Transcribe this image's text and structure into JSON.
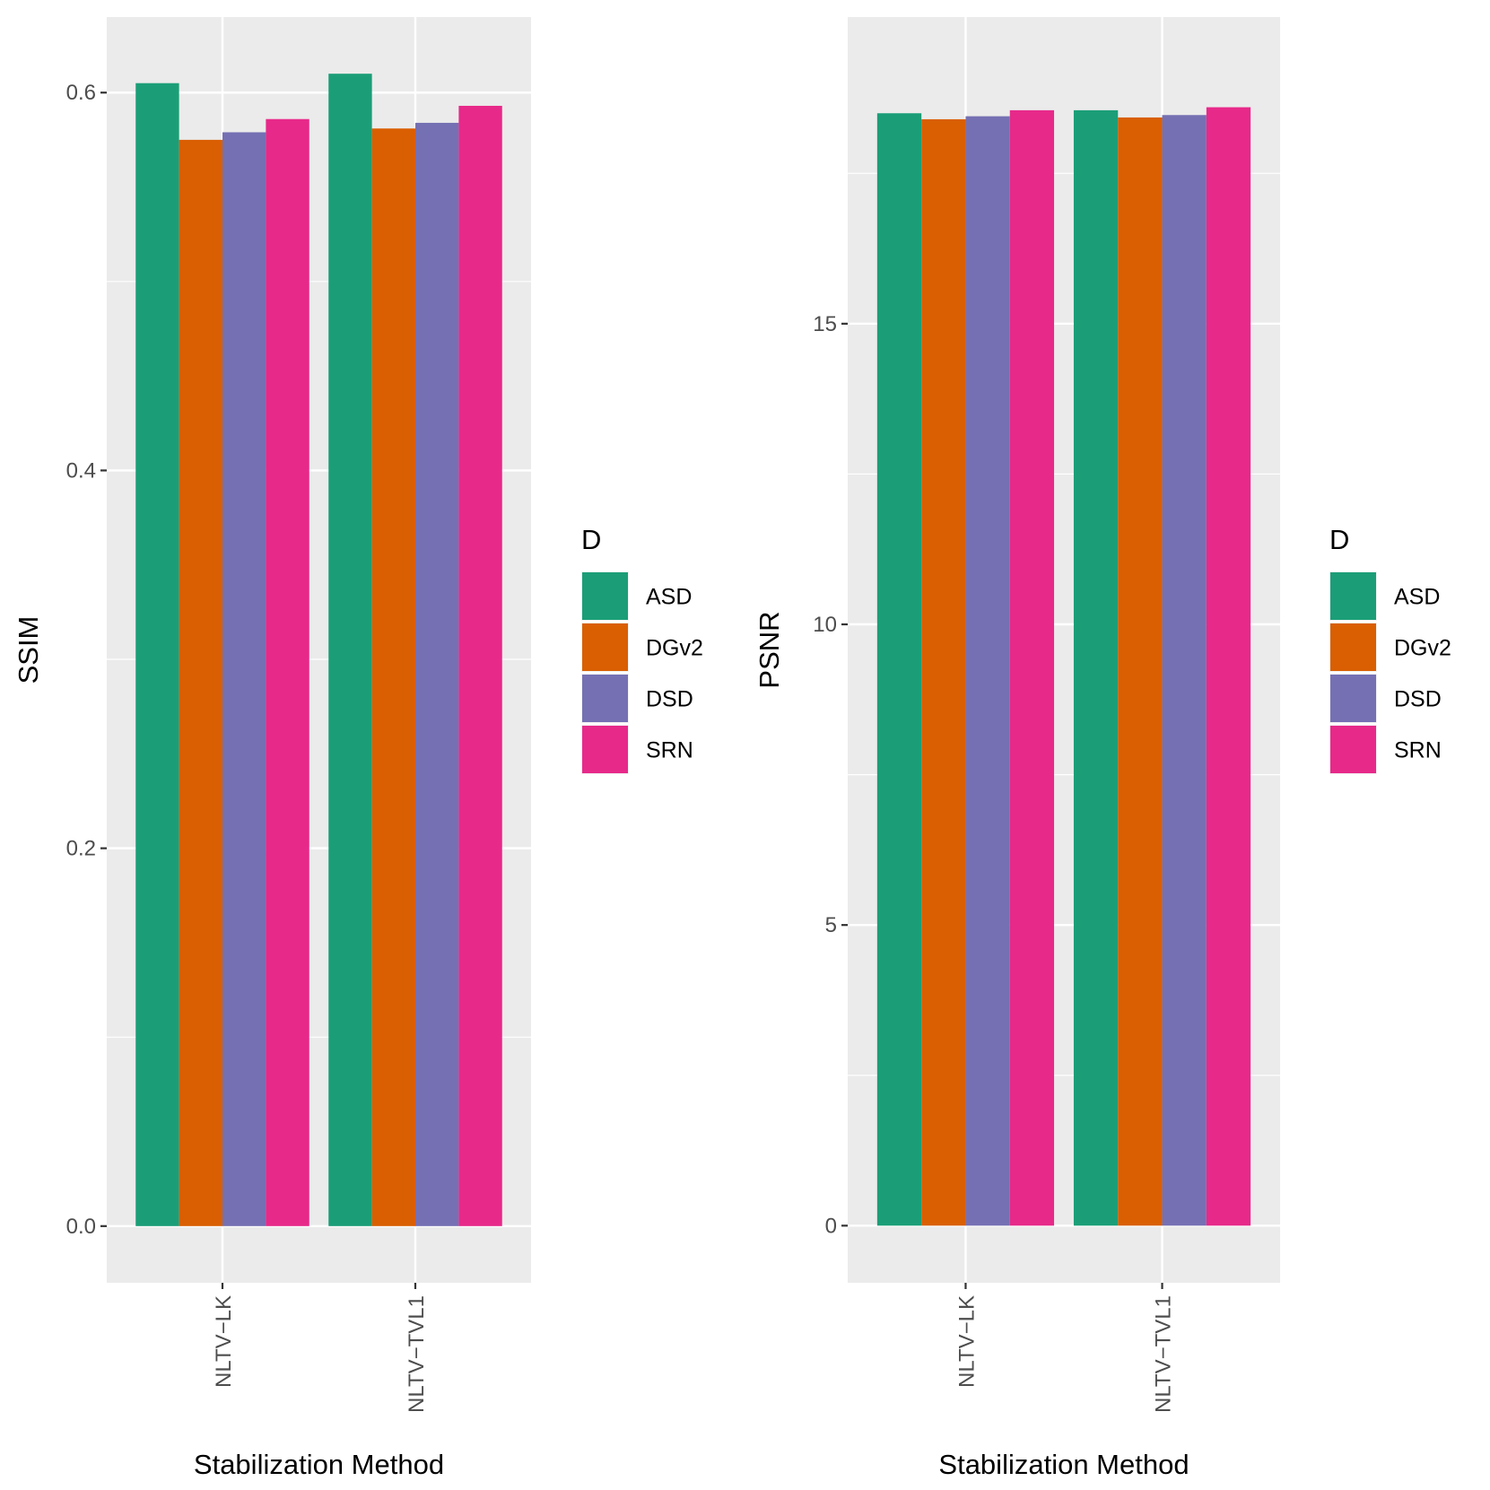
{
  "chart_data": [
    {
      "type": "bar",
      "xlabel": "Stabilization Method",
      "ylabel": "SSIM",
      "categories": [
        "NLTV−LK",
        "NLTV−TVL1"
      ],
      "series": [
        {
          "name": "ASD",
          "color": "#1B9E77",
          "values": [
            0.605,
            0.61
          ]
        },
        {
          "name": "DGv2",
          "color": "#D95F02",
          "values": [
            0.575,
            0.581
          ]
        },
        {
          "name": "DSD",
          "color": "#7570B3",
          "values": [
            0.579,
            0.584
          ]
        },
        {
          "name": "SRN",
          "color": "#E7298A",
          "values": [
            0.586,
            0.593
          ]
        }
      ],
      "ylim": [
        -0.03,
        0.64
      ],
      "yticks": [
        0.0,
        0.2,
        0.4,
        0.6
      ],
      "ytick_labels": [
        "0.0",
        "0.2",
        "0.4",
        "0.6"
      ],
      "legend": {
        "title": "D",
        "position": "right"
      },
      "grid": true
    },
    {
      "type": "bar",
      "xlabel": "Stabilization Method",
      "ylabel": "PSNR",
      "categories": [
        "NLTV−LK",
        "NLTV−TVL1"
      ],
      "series": [
        {
          "name": "ASD",
          "color": "#1B9E77",
          "values": [
            18.5,
            18.55
          ]
        },
        {
          "name": "DGv2",
          "color": "#D95F02",
          "values": [
            18.4,
            18.43
          ]
        },
        {
          "name": "DSD",
          "color": "#7570B3",
          "values": [
            18.45,
            18.47
          ]
        },
        {
          "name": "SRN",
          "color": "#E7298A",
          "values": [
            18.55,
            18.6
          ]
        }
      ],
      "ylim": [
        -0.95,
        20.1
      ],
      "yticks": [
        0,
        5,
        10,
        15
      ],
      "ytick_labels": [
        "0",
        "5",
        "10",
        "15"
      ],
      "legend": {
        "title": "D",
        "position": "right"
      },
      "grid": true
    }
  ]
}
